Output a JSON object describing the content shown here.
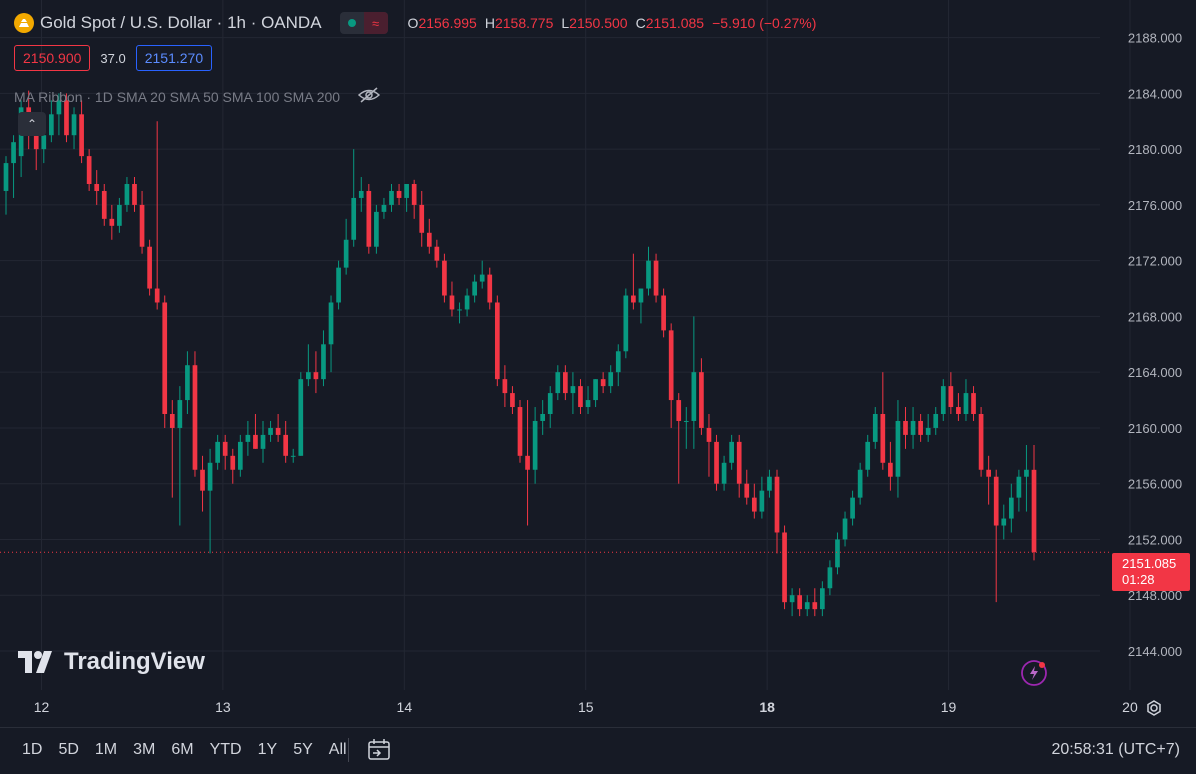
{
  "header": {
    "title": "Gold Spot / U.S. Dollar · 1h · OANDA",
    "ohlc": [
      {
        "k": "O",
        "v": "2156.995"
      },
      {
        "k": "H",
        "v": "2158.775"
      },
      {
        "k": "L",
        "v": "2150.500"
      },
      {
        "k": "C",
        "v": "2151.085"
      }
    ],
    "change": "−5.910 (−0.27%)"
  },
  "trade": {
    "sell": "2150.900",
    "spread": "37.0",
    "buy": "2151.270"
  },
  "indicator": {
    "label": "MA Ribbon · 1D SMA 20 SMA 50 SMA 100 SMA 200"
  },
  "watermark": "TradingView",
  "price_tag": {
    "price": "2151.085",
    "countdown": "01:28"
  },
  "bottom": {
    "ranges": [
      "1D",
      "5D",
      "1M",
      "3M",
      "6M",
      "YTD",
      "1Y",
      "5Y",
      "All"
    ],
    "clock": "20:58:31 (UTC+7)"
  },
  "colors": {
    "up": "#089981",
    "down": "#f23645",
    "background": "#161a25",
    "grid": "#232733"
  },
  "chart_data": {
    "type": "candlestick",
    "y_ticks": [
      2144,
      2148,
      2152,
      2156,
      2160,
      2164,
      2168,
      2172,
      2176,
      2180,
      2184,
      2188
    ],
    "x_labels": [
      "12",
      "13",
      "14",
      "15",
      "18",
      "19",
      "20"
    ],
    "last_price": 2151.085,
    "ylim": [
      2141.2,
      2190.7
    ],
    "series": [
      {
        "o": 2177.0,
        "h": 2179.5,
        "l": 2175.3,
        "c": 2179.0
      },
      {
        "o": 2179.0,
        "h": 2181.0,
        "l": 2176.5,
        "c": 2180.5
      },
      {
        "o": 2179.5,
        "h": 2183.5,
        "l": 2178.0,
        "c": 2183.0
      },
      {
        "o": 2183.0,
        "h": 2184.2,
        "l": 2180.0,
        "c": 2181.0
      },
      {
        "o": 2181.0,
        "h": 2182.5,
        "l": 2178.5,
        "c": 2180.0
      },
      {
        "o": 2180.0,
        "h": 2181.5,
        "l": 2179.0,
        "c": 2181.0
      },
      {
        "o": 2181.0,
        "h": 2183.5,
        "l": 2180.5,
        "c": 2182.5
      },
      {
        "o": 2182.5,
        "h": 2184.0,
        "l": 2181.0,
        "c": 2183.5
      },
      {
        "o": 2183.5,
        "h": 2184.0,
        "l": 2180.5,
        "c": 2181.0
      },
      {
        "o": 2181.0,
        "h": 2183.0,
        "l": 2180.0,
        "c": 2182.5
      },
      {
        "o": 2182.5,
        "h": 2183.5,
        "l": 2179.0,
        "c": 2179.5
      },
      {
        "o": 2179.5,
        "h": 2180.0,
        "l": 2177.0,
        "c": 2177.5
      },
      {
        "o": 2177.5,
        "h": 2178.5,
        "l": 2176.0,
        "c": 2177.0
      },
      {
        "o": 2177.0,
        "h": 2177.5,
        "l": 2174.5,
        "c": 2175.0
      },
      {
        "o": 2175.0,
        "h": 2176.0,
        "l": 2173.5,
        "c": 2174.5
      },
      {
        "o": 2174.5,
        "h": 2176.5,
        "l": 2174.0,
        "c": 2176.0
      },
      {
        "o": 2176.0,
        "h": 2178.0,
        "l": 2175.5,
        "c": 2177.5
      },
      {
        "o": 2177.5,
        "h": 2178.0,
        "l": 2175.5,
        "c": 2176.0
      },
      {
        "o": 2176.0,
        "h": 2177.0,
        "l": 2172.5,
        "c": 2173.0
      },
      {
        "o": 2173.0,
        "h": 2173.5,
        "l": 2169.5,
        "c": 2170.0
      },
      {
        "o": 2170.0,
        "h": 2182.0,
        "l": 2168.5,
        "c": 2169.0
      },
      {
        "o": 2169.0,
        "h": 2169.5,
        "l": 2160.0,
        "c": 2161.0
      },
      {
        "o": 2161.0,
        "h": 2162.0,
        "l": 2155.0,
        "c": 2160.0
      },
      {
        "o": 2160.0,
        "h": 2163.0,
        "l": 2153.0,
        "c": 2162.0
      },
      {
        "o": 2162.0,
        "h": 2165.5,
        "l": 2161.0,
        "c": 2164.5
      },
      {
        "o": 2164.5,
        "h": 2165.5,
        "l": 2156.5,
        "c": 2157.0
      },
      {
        "o": 2157.0,
        "h": 2158.0,
        "l": 2154.0,
        "c": 2155.5
      },
      {
        "o": 2155.5,
        "h": 2158.5,
        "l": 2151.0,
        "c": 2157.5
      },
      {
        "o": 2157.5,
        "h": 2159.5,
        "l": 2157.0,
        "c": 2159.0
      },
      {
        "o": 2159.0,
        "h": 2159.5,
        "l": 2157.0,
        "c": 2158.0
      },
      {
        "o": 2158.0,
        "h": 2158.5,
        "l": 2156.0,
        "c": 2157.0
      },
      {
        "o": 2157.0,
        "h": 2159.5,
        "l": 2156.5,
        "c": 2159.0
      },
      {
        "o": 2159.0,
        "h": 2160.5,
        "l": 2158.0,
        "c": 2159.5
      },
      {
        "o": 2159.5,
        "h": 2161.0,
        "l": 2158.5,
        "c": 2158.5
      },
      {
        "o": 2158.5,
        "h": 2160.5,
        "l": 2157.5,
        "c": 2159.5
      },
      {
        "o": 2159.5,
        "h": 2160.5,
        "l": 2159.0,
        "c": 2160.0
      },
      {
        "o": 2160.0,
        "h": 2161.0,
        "l": 2159.0,
        "c": 2159.5
      },
      {
        "o": 2159.5,
        "h": 2160.5,
        "l": 2157.5,
        "c": 2158.0
      },
      {
        "o": 2158.0,
        "h": 2158.5,
        "l": 2157.5,
        "c": 2158.0
      },
      {
        "o": 2158.0,
        "h": 2164.0,
        "l": 2158.0,
        "c": 2163.5
      },
      {
        "o": 2163.5,
        "h": 2166.0,
        "l": 2163.0,
        "c": 2164.0
      },
      {
        "o": 2164.0,
        "h": 2165.5,
        "l": 2162.5,
        "c": 2163.5
      },
      {
        "o": 2163.5,
        "h": 2167.0,
        "l": 2163.0,
        "c": 2166.0
      },
      {
        "o": 2166.0,
        "h": 2169.5,
        "l": 2164.0,
        "c": 2169.0
      },
      {
        "o": 2169.0,
        "h": 2172.0,
        "l": 2168.5,
        "c": 2171.5
      },
      {
        "o": 2171.5,
        "h": 2175.0,
        "l": 2171.0,
        "c": 2173.5
      },
      {
        "o": 2173.5,
        "h": 2180.0,
        "l": 2173.0,
        "c": 2176.5
      },
      {
        "o": 2176.5,
        "h": 2178.0,
        "l": 2175.5,
        "c": 2177.0
      },
      {
        "o": 2177.0,
        "h": 2177.5,
        "l": 2172.5,
        "c": 2173.0
      },
      {
        "o": 2173.0,
        "h": 2176.0,
        "l": 2172.5,
        "c": 2175.5
      },
      {
        "o": 2175.5,
        "h": 2176.5,
        "l": 2175.0,
        "c": 2176.0
      },
      {
        "o": 2176.0,
        "h": 2177.5,
        "l": 2175.5,
        "c": 2177.0
      },
      {
        "o": 2177.0,
        "h": 2177.5,
        "l": 2176.0,
        "c": 2176.5
      },
      {
        "o": 2176.5,
        "h": 2177.5,
        "l": 2175.5,
        "c": 2177.5
      },
      {
        "o": 2177.5,
        "h": 2177.8,
        "l": 2175.0,
        "c": 2176.0
      },
      {
        "o": 2176.0,
        "h": 2177.0,
        "l": 2173.0,
        "c": 2174.0
      },
      {
        "o": 2174.0,
        "h": 2175.0,
        "l": 2172.5,
        "c": 2173.0
      },
      {
        "o": 2173.0,
        "h": 2173.5,
        "l": 2171.5,
        "c": 2172.0
      },
      {
        "o": 2172.0,
        "h": 2172.5,
        "l": 2169.0,
        "c": 2169.5
      },
      {
        "o": 2169.5,
        "h": 2170.5,
        "l": 2168.0,
        "c": 2168.5
      },
      {
        "o": 2168.5,
        "h": 2169.0,
        "l": 2167.5,
        "c": 2168.5
      },
      {
        "o": 2168.5,
        "h": 2170.0,
        "l": 2168.0,
        "c": 2169.5
      },
      {
        "o": 2169.5,
        "h": 2171.0,
        "l": 2169.0,
        "c": 2170.5
      },
      {
        "o": 2170.5,
        "h": 2172.0,
        "l": 2170.0,
        "c": 2171.0
      },
      {
        "o": 2171.0,
        "h": 2171.5,
        "l": 2168.5,
        "c": 2169.0
      },
      {
        "o": 2169.0,
        "h": 2169.5,
        "l": 2163.0,
        "c": 2163.5
      },
      {
        "o": 2163.5,
        "h": 2164.5,
        "l": 2161.5,
        "c": 2162.5
      },
      {
        "o": 2162.5,
        "h": 2163.0,
        "l": 2161.0,
        "c": 2161.5
      },
      {
        "o": 2161.5,
        "h": 2162.0,
        "l": 2157.5,
        "c": 2158.0
      },
      {
        "o": 2158.0,
        "h": 2162.0,
        "l": 2153.0,
        "c": 2157.0
      },
      {
        "o": 2157.0,
        "h": 2161.5,
        "l": 2156.0,
        "c": 2160.5
      },
      {
        "o": 2160.5,
        "h": 2162.0,
        "l": 2159.5,
        "c": 2161.0
      },
      {
        "o": 2161.0,
        "h": 2163.0,
        "l": 2160.0,
        "c": 2162.5
      },
      {
        "o": 2162.5,
        "h": 2164.5,
        "l": 2162.0,
        "c": 2164.0
      },
      {
        "o": 2164.0,
        "h": 2164.5,
        "l": 2162.0,
        "c": 2162.5
      },
      {
        "o": 2162.5,
        "h": 2164.0,
        "l": 2161.0,
        "c": 2163.0
      },
      {
        "o": 2163.0,
        "h": 2163.5,
        "l": 2161.0,
        "c": 2161.5
      },
      {
        "o": 2161.5,
        "h": 2163.0,
        "l": 2161.0,
        "c": 2162.0
      },
      {
        "o": 2162.0,
        "h": 2163.5,
        "l": 2161.5,
        "c": 2163.5
      },
      {
        "o": 2163.5,
        "h": 2164.0,
        "l": 2162.5,
        "c": 2163.0
      },
      {
        "o": 2163.0,
        "h": 2164.5,
        "l": 2162.5,
        "c": 2164.0
      },
      {
        "o": 2164.0,
        "h": 2166.0,
        "l": 2163.0,
        "c": 2165.5
      },
      {
        "o": 2165.5,
        "h": 2170.0,
        "l": 2165.0,
        "c": 2169.5
      },
      {
        "o": 2169.5,
        "h": 2172.5,
        "l": 2168.5,
        "c": 2169.0
      },
      {
        "o": 2169.0,
        "h": 2170.0,
        "l": 2167.5,
        "c": 2170.0
      },
      {
        "o": 2170.0,
        "h": 2173.0,
        "l": 2169.5,
        "c": 2172.0
      },
      {
        "o": 2172.0,
        "h": 2172.5,
        "l": 2169.0,
        "c": 2169.5
      },
      {
        "o": 2169.5,
        "h": 2170.0,
        "l": 2166.5,
        "c": 2167.0
      },
      {
        "o": 2167.0,
        "h": 2167.5,
        "l": 2160.0,
        "c": 2162.0
      },
      {
        "o": 2162.0,
        "h": 2162.5,
        "l": 2156.0,
        "c": 2160.5
      },
      {
        "o": 2160.5,
        "h": 2161.5,
        "l": 2158.5,
        "c": 2160.5
      },
      {
        "o": 2160.5,
        "h": 2168.0,
        "l": 2158.5,
        "c": 2164.0
      },
      {
        "o": 2164.0,
        "h": 2165.0,
        "l": 2159.5,
        "c": 2160.0
      },
      {
        "o": 2160.0,
        "h": 2161.0,
        "l": 2156.5,
        "c": 2159.0
      },
      {
        "o": 2159.0,
        "h": 2159.5,
        "l": 2155.5,
        "c": 2156.0
      },
      {
        "o": 2156.0,
        "h": 2158.0,
        "l": 2155.5,
        "c": 2157.5
      },
      {
        "o": 2157.5,
        "h": 2159.5,
        "l": 2157.0,
        "c": 2159.0
      },
      {
        "o": 2159.0,
        "h": 2159.5,
        "l": 2155.0,
        "c": 2156.0
      },
      {
        "o": 2156.0,
        "h": 2157.0,
        "l": 2154.5,
        "c": 2155.0
      },
      {
        "o": 2155.0,
        "h": 2156.0,
        "l": 2153.5,
        "c": 2154.0
      },
      {
        "o": 2154.0,
        "h": 2156.5,
        "l": 2153.5,
        "c": 2155.5
      },
      {
        "o": 2155.5,
        "h": 2157.0,
        "l": 2155.0,
        "c": 2156.5
      },
      {
        "o": 2156.5,
        "h": 2157.0,
        "l": 2151.0,
        "c": 2152.5
      },
      {
        "o": 2152.5,
        "h": 2153.0,
        "l": 2147.0,
        "c": 2147.5
      },
      {
        "o": 2147.5,
        "h": 2148.5,
        "l": 2146.5,
        "c": 2148.0
      },
      {
        "o": 2148.0,
        "h": 2148.5,
        "l": 2146.5,
        "c": 2147.0
      },
      {
        "o": 2147.0,
        "h": 2148.0,
        "l": 2146.5,
        "c": 2147.5
      },
      {
        "o": 2147.5,
        "h": 2148.5,
        "l": 2146.5,
        "c": 2147.0
      },
      {
        "o": 2147.0,
        "h": 2149.0,
        "l": 2146.5,
        "c": 2148.5
      },
      {
        "o": 2148.5,
        "h": 2150.5,
        "l": 2148.0,
        "c": 2150.0
      },
      {
        "o": 2150.0,
        "h": 2152.5,
        "l": 2149.5,
        "c": 2152.0
      },
      {
        "o": 2152.0,
        "h": 2154.0,
        "l": 2151.5,
        "c": 2153.5
      },
      {
        "o": 2153.5,
        "h": 2155.5,
        "l": 2153.0,
        "c": 2155.0
      },
      {
        "o": 2155.0,
        "h": 2157.5,
        "l": 2154.5,
        "c": 2157.0
      },
      {
        "o": 2157.0,
        "h": 2159.5,
        "l": 2156.5,
        "c": 2159.0
      },
      {
        "o": 2159.0,
        "h": 2161.5,
        "l": 2158.5,
        "c": 2161.0
      },
      {
        "o": 2161.0,
        "h": 2164.0,
        "l": 2157.0,
        "c": 2157.5
      },
      {
        "o": 2157.5,
        "h": 2159.0,
        "l": 2155.5,
        "c": 2156.5
      },
      {
        "o": 2156.5,
        "h": 2162.0,
        "l": 2155.0,
        "c": 2160.5
      },
      {
        "o": 2160.5,
        "h": 2161.5,
        "l": 2158.5,
        "c": 2159.5
      },
      {
        "o": 2159.5,
        "h": 2161.5,
        "l": 2158.5,
        "c": 2160.5
      },
      {
        "o": 2160.5,
        "h": 2161.0,
        "l": 2159.0,
        "c": 2159.5
      },
      {
        "o": 2159.5,
        "h": 2161.0,
        "l": 2159.0,
        "c": 2160.0
      },
      {
        "o": 2160.0,
        "h": 2161.5,
        "l": 2159.5,
        "c": 2161.0
      },
      {
        "o": 2161.0,
        "h": 2163.5,
        "l": 2160.5,
        "c": 2163.0
      },
      {
        "o": 2163.0,
        "h": 2164.0,
        "l": 2161.0,
        "c": 2161.5
      },
      {
        "o": 2161.5,
        "h": 2162.5,
        "l": 2160.5,
        "c": 2161.0
      },
      {
        "o": 2161.0,
        "h": 2163.5,
        "l": 2160.5,
        "c": 2162.5
      },
      {
        "o": 2162.5,
        "h": 2163.0,
        "l": 2160.5,
        "c": 2161.0
      },
      {
        "o": 2161.0,
        "h": 2161.5,
        "l": 2156.5,
        "c": 2157.0
      },
      {
        "o": 2157.0,
        "h": 2158.0,
        "l": 2154.5,
        "c": 2156.5
      },
      {
        "o": 2156.5,
        "h": 2157.0,
        "l": 2147.5,
        "c": 2153.0
      },
      {
        "o": 2153.0,
        "h": 2154.5,
        "l": 2152.0,
        "c": 2153.5
      },
      {
        "o": 2153.5,
        "h": 2156.0,
        "l": 2152.5,
        "c": 2155.0
      },
      {
        "o": 2155.0,
        "h": 2157.0,
        "l": 2154.0,
        "c": 2156.5
      },
      {
        "o": 2156.5,
        "h": 2158.775,
        "l": 2154.0,
        "c": 2157.0
      },
      {
        "o": 2156.995,
        "h": 2158.775,
        "l": 2150.5,
        "c": 2151.085
      }
    ]
  }
}
